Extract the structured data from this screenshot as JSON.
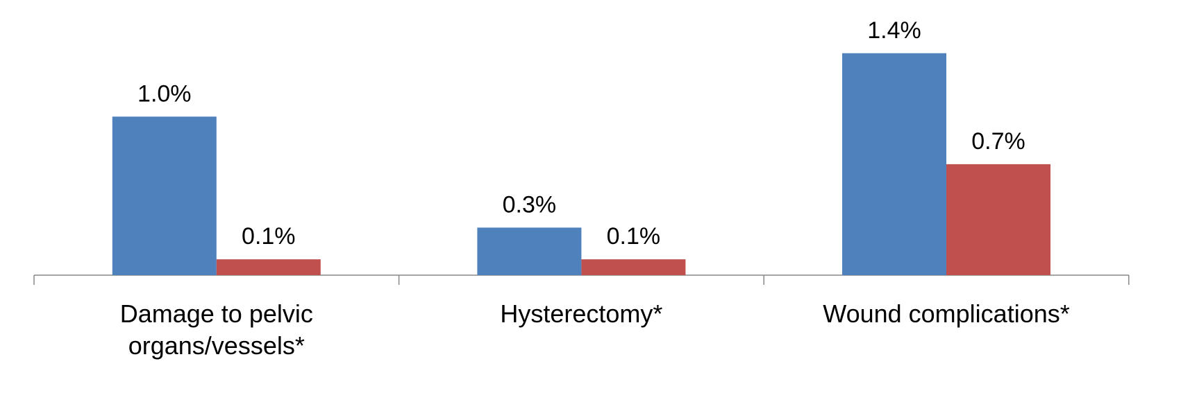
{
  "chart_data": {
    "type": "bar",
    "categories": [
      "Damage to pelvic organs/vessels*",
      "Hysterectomy*",
      "Wound complications*"
    ],
    "series": [
      {
        "color": "#4f81bd",
        "values": [
          1.0,
          0.3,
          1.4
        ],
        "value_labels": [
          "1.0%",
          "0.3%",
          "1.4%"
        ]
      },
      {
        "color": "#c0504d",
        "values": [
          0.1,
          0.1,
          0.7
        ],
        "value_labels": [
          "0.1%",
          "0.1%",
          "0.7%"
        ]
      }
    ],
    "ylim": [
      0,
      1.6
    ]
  }
}
